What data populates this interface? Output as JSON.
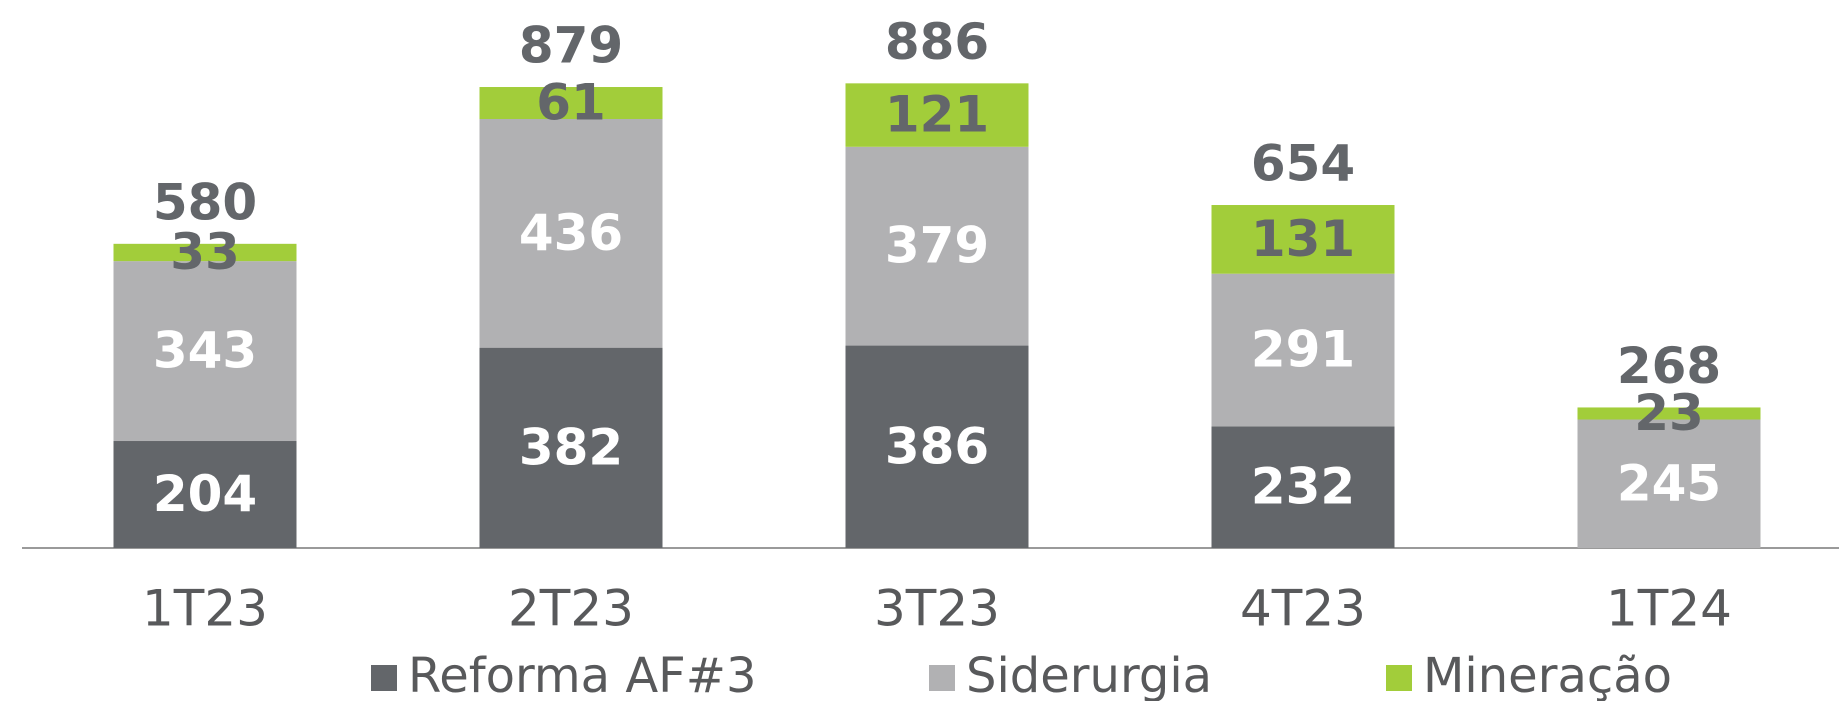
{
  "chart_data": {
    "type": "stacked_bar",
    "categories": [
      "1T23",
      "2T23",
      "3T23",
      "4T23",
      "1T24"
    ],
    "series": [
      {
        "name": "Reforma AF#3",
        "color": "#63666a",
        "label_color": "#ffffff",
        "values": [
          204,
          382,
          386,
          232,
          null
        ]
      },
      {
        "name": "Siderurgia",
        "color": "#b1b1b3",
        "label_color": "#ffffff",
        "values": [
          343,
          436,
          379,
          291,
          245
        ]
      },
      {
        "name": "Mineração",
        "color": "#a2cd3a",
        "label_color": "#63666a",
        "values": [
          33,
          61,
          121,
          131,
          23
        ]
      }
    ],
    "totals": [
      580,
      879,
      886,
      654,
      268
    ],
    "total_color": "#63666a",
    "ylim": [
      0,
      900
    ],
    "legend": "bottom"
  }
}
